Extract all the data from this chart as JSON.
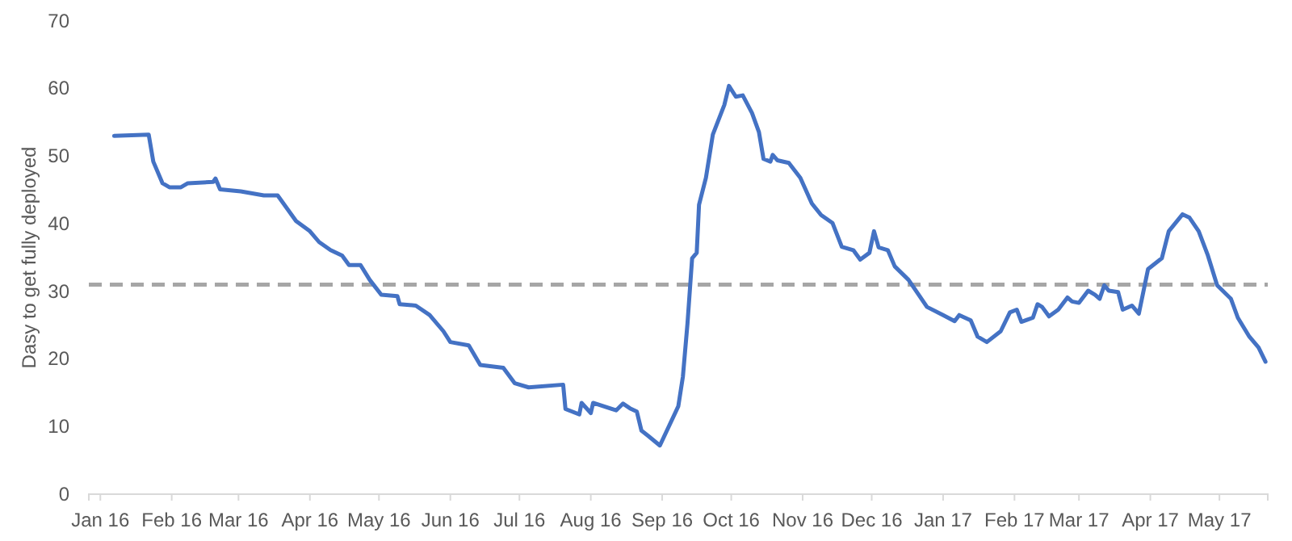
{
  "chart_data": {
    "type": "line",
    "ylabel": "Dasy to get fully deployed",
    "grid": false,
    "line_style": "solid",
    "marker": "none",
    "xlim": [
      "2015-12-27",
      "2017-05-22"
    ],
    "ylim": [
      0,
      70
    ],
    "yticks": [
      0,
      10,
      20,
      30,
      40,
      50,
      60,
      70
    ],
    "xticks": [
      {
        "value": "2016-01-01",
        "label": "Jan 16"
      },
      {
        "value": "2016-02-01",
        "label": "Feb 16"
      },
      {
        "value": "2016-03-01",
        "label": "Mar 16"
      },
      {
        "value": "2016-04-01",
        "label": "Apr 16"
      },
      {
        "value": "2016-05-01",
        "label": "May 16"
      },
      {
        "value": "2016-06-01",
        "label": "Jun 16"
      },
      {
        "value": "2016-07-01",
        "label": "Jul 16"
      },
      {
        "value": "2016-08-01",
        "label": "Aug 16"
      },
      {
        "value": "2016-09-01",
        "label": "Sep 16"
      },
      {
        "value": "2016-10-01",
        "label": "Oct 16"
      },
      {
        "value": "2016-11-01",
        "label": "Nov 16"
      },
      {
        "value": "2016-12-01",
        "label": "Dec 16"
      },
      {
        "value": "2017-01-01",
        "label": "Jan 17"
      },
      {
        "value": "2017-02-01",
        "label": "Feb 17"
      },
      {
        "value": "2017-03-01",
        "label": "Mar 17"
      },
      {
        "value": "2017-04-01",
        "label": "Apr 17"
      },
      {
        "value": "2017-05-01",
        "label": "May 17"
      }
    ],
    "ref_lines": [
      {
        "axis": "y",
        "value": 31,
        "label": null,
        "color": "#a6a6a6",
        "line_style": "dashed"
      }
    ],
    "x": [
      "2016-01-07",
      "2016-01-22",
      "2016-01-24",
      "2016-01-28",
      "2016-01-31",
      "2016-02-05",
      "2016-02-08",
      "2016-02-19",
      "2016-02-20",
      "2016-02-22",
      "2016-03-02",
      "2016-03-12",
      "2016-03-18",
      "2016-03-26",
      "2016-04-01",
      "2016-04-05",
      "2016-04-10",
      "2016-04-15",
      "2016-04-18",
      "2016-04-23",
      "2016-04-27",
      "2016-05-02",
      "2016-05-09",
      "2016-05-10",
      "2016-05-17",
      "2016-05-23",
      "2016-05-29",
      "2016-06-01",
      "2016-06-09",
      "2016-06-14",
      "2016-06-24",
      "2016-06-29",
      "2016-07-05",
      "2016-07-20",
      "2016-07-21",
      "2016-07-27",
      "2016-07-28",
      "2016-08-01",
      "2016-08-02",
      "2016-08-12",
      "2016-08-15",
      "2016-08-18",
      "2016-08-21",
      "2016-08-23",
      "2016-08-26",
      "2016-08-31",
      "2016-09-08",
      "2016-09-10",
      "2016-09-12",
      "2016-09-14",
      "2016-09-16",
      "2016-09-17",
      "2016-09-20",
      "2016-09-23",
      "2016-09-28",
      "2016-09-30",
      "2016-10-03",
      "2016-10-06",
      "2016-10-10",
      "2016-10-13",
      "2016-10-15",
      "2016-10-18",
      "2016-10-19",
      "2016-10-21",
      "2016-10-26",
      "2016-10-31",
      "2016-11-05",
      "2016-11-09",
      "2016-11-14",
      "2016-11-18",
      "2016-11-23",
      "2016-11-26",
      "2016-11-30",
      "2016-12-02",
      "2016-12-04",
      "2016-12-08",
      "2016-12-11",
      "2016-12-17",
      "2016-12-25",
      "2017-01-01",
      "2017-01-06",
      "2017-01-08",
      "2017-01-13",
      "2017-01-16",
      "2017-01-20",
      "2017-01-26",
      "2017-01-30",
      "2017-02-02",
      "2017-02-04",
      "2017-02-09",
      "2017-02-11",
      "2017-02-13",
      "2017-02-16",
      "2017-02-20",
      "2017-02-24",
      "2017-02-26",
      "2017-03-01",
      "2017-03-05",
      "2017-03-08",
      "2017-03-10",
      "2017-03-12",
      "2017-03-14",
      "2017-03-18",
      "2017-03-20",
      "2017-03-24",
      "2017-03-27",
      "2017-03-31",
      "2017-04-06",
      "2017-04-09",
      "2017-04-15",
      "2017-04-18",
      "2017-04-22",
      "2017-04-26",
      "2017-04-30",
      "2017-05-06",
      "2017-05-09",
      "2017-05-14",
      "2017-05-18",
      "2017-05-21"
    ],
    "series": [
      {
        "color": "#4472c4",
        "values": [
          53.0,
          53.2,
          49.2,
          46.0,
          45.4,
          45.4,
          46.0,
          46.2,
          46.7,
          45.1,
          44.8,
          44.2,
          44.2,
          40.4,
          38.9,
          37.3,
          36.1,
          35.3,
          33.9,
          33.9,
          31.7,
          29.5,
          29.3,
          28.1,
          27.9,
          26.5,
          24.1,
          22.5,
          22.0,
          19.1,
          18.7,
          16.4,
          15.8,
          16.2,
          12.6,
          11.8,
          13.5,
          12.0,
          13.5,
          12.4,
          13.4,
          12.7,
          12.2,
          9.4,
          8.6,
          7.2,
          13.0,
          17.4,
          25.3,
          34.9,
          35.7,
          42.8,
          46.8,
          53.2,
          57.6,
          60.4,
          58.8,
          59.0,
          56.4,
          53.6,
          49.6,
          49.2,
          50.2,
          49.4,
          49.0,
          46.8,
          43.0,
          41.3,
          40.1,
          36.6,
          36.1,
          34.7,
          35.7,
          38.9,
          36.5,
          36.1,
          33.7,
          31.7,
          27.7,
          26.5,
          25.6,
          26.5,
          25.7,
          23.3,
          22.5,
          24.1,
          26.9,
          27.3,
          25.5,
          26.1,
          28.1,
          27.7,
          26.3,
          27.3,
          29.1,
          28.5,
          28.3,
          30.1,
          29.5,
          28.9,
          30.9,
          30.1,
          29.9,
          27.3,
          27.9,
          26.7,
          33.3,
          34.9,
          38.9,
          41.4,
          40.9,
          38.9,
          35.3,
          30.9,
          28.9,
          26.1,
          23.3,
          21.7,
          19.6
        ]
      }
    ]
  }
}
